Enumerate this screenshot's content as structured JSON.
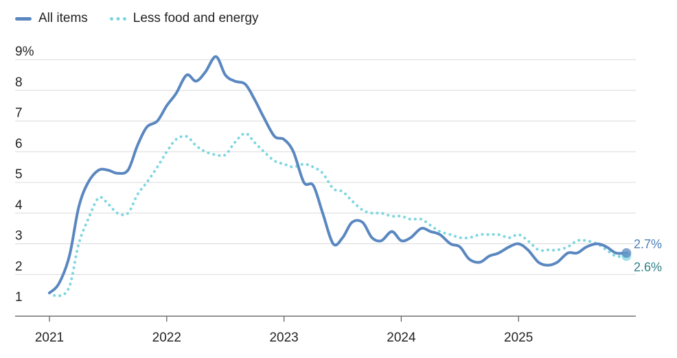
{
  "legend": {
    "all_items": "All items",
    "core": "Less food and energy"
  },
  "chart_data": {
    "type": "line",
    "ylim": [
      1,
      9
    ],
    "yticks": [
      "9%",
      "8",
      "7",
      "6",
      "5",
      "4",
      "3",
      "2",
      "1"
    ],
    "xticks": [
      "2021",
      "2022",
      "2023",
      "2024",
      "2025"
    ],
    "grid": true,
    "legend_position": "top-left",
    "series": [
      {
        "name": "All items",
        "color": "#5a87c0",
        "style": "solid",
        "end_label": "2.7%",
        "x": [
          2021.0,
          2021.08,
          2021.17,
          2021.25,
          2021.33,
          2021.42,
          2021.5,
          2021.58,
          2021.67,
          2021.75,
          2021.83,
          2021.92,
          2022.0,
          2022.08,
          2022.17,
          2022.25,
          2022.33,
          2022.42,
          2022.5,
          2022.58,
          2022.67,
          2022.75,
          2022.83,
          2022.92,
          2023.0,
          2023.08,
          2023.17,
          2023.25,
          2023.33,
          2023.42,
          2023.5,
          2023.58,
          2023.67,
          2023.75,
          2023.83,
          2023.92,
          2024.0,
          2024.08,
          2024.17,
          2024.25,
          2024.33,
          2024.42,
          2024.5,
          2024.58,
          2024.67,
          2024.75,
          2024.83,
          2024.92,
          2025.0,
          2025.08,
          2025.17,
          2025.25,
          2025.33,
          2025.42,
          2025.5,
          2025.58,
          2025.67,
          2025.75,
          2025.83,
          2025.92
        ],
        "values": [
          1.4,
          1.7,
          2.6,
          4.2,
          5.0,
          5.4,
          5.4,
          5.3,
          5.4,
          6.2,
          6.8,
          7.0,
          7.5,
          7.9,
          8.5,
          8.3,
          8.6,
          9.1,
          8.5,
          8.3,
          8.2,
          7.7,
          7.1,
          6.5,
          6.4,
          6.0,
          5.0,
          4.9,
          4.0,
          3.0,
          3.2,
          3.7,
          3.7,
          3.2,
          3.1,
          3.4,
          3.1,
          3.2,
          3.5,
          3.4,
          3.3,
          3.0,
          2.9,
          2.5,
          2.4,
          2.6,
          2.7,
          2.9,
          3.0,
          2.8,
          2.4,
          2.3,
          2.4,
          2.7,
          2.7,
          2.9,
          3.0,
          2.9,
          2.7,
          2.7
        ]
      },
      {
        "name": "Less food and energy",
        "color": "#7dd6df",
        "style": "dotted",
        "end_label": "2.6%",
        "x": [
          2021.0,
          2021.08,
          2021.17,
          2021.25,
          2021.33,
          2021.42,
          2021.5,
          2021.58,
          2021.67,
          2021.75,
          2021.83,
          2021.92,
          2022.0,
          2022.08,
          2022.17,
          2022.25,
          2022.33,
          2022.42,
          2022.5,
          2022.58,
          2022.67,
          2022.75,
          2022.83,
          2022.92,
          2023.0,
          2023.08,
          2023.17,
          2023.25,
          2023.33,
          2023.42,
          2023.5,
          2023.58,
          2023.67,
          2023.75,
          2023.83,
          2023.92,
          2024.0,
          2024.08,
          2024.17,
          2024.25,
          2024.33,
          2024.42,
          2024.5,
          2024.58,
          2024.67,
          2024.75,
          2024.83,
          2024.92,
          2025.0,
          2025.08,
          2025.17,
          2025.25,
          2025.33,
          2025.42,
          2025.5,
          2025.58,
          2025.67,
          2025.75,
          2025.83,
          2025.92
        ],
        "values": [
          1.4,
          1.3,
          1.6,
          3.0,
          3.8,
          4.5,
          4.3,
          4.0,
          4.0,
          4.6,
          5.0,
          5.5,
          6.0,
          6.4,
          6.5,
          6.2,
          6.0,
          5.9,
          5.9,
          6.3,
          6.6,
          6.3,
          6.0,
          5.7,
          5.6,
          5.5,
          5.6,
          5.5,
          5.3,
          4.8,
          4.7,
          4.4,
          4.1,
          4.0,
          4.0,
          3.9,
          3.9,
          3.8,
          3.8,
          3.6,
          3.4,
          3.3,
          3.2,
          3.2,
          3.3,
          3.3,
          3.3,
          3.2,
          3.3,
          3.1,
          2.8,
          2.8,
          2.8,
          2.9,
          3.1,
          3.1,
          3.0,
          2.8,
          2.6,
          2.6
        ]
      }
    ]
  }
}
